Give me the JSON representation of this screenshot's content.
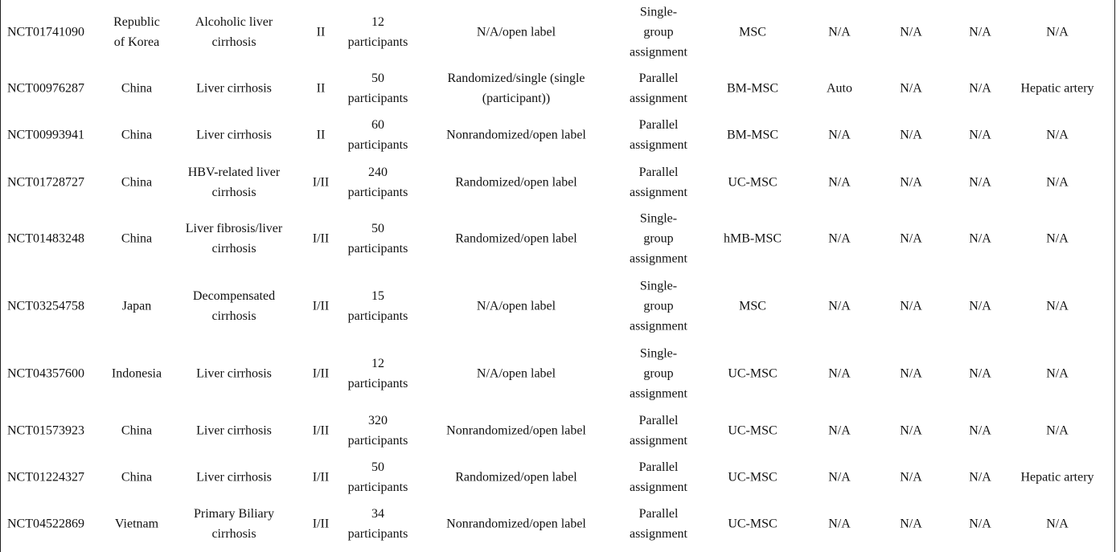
{
  "table": {
    "rows": [
      [
        "NCT01741090",
        "Republic of Korea",
        "Alcoholic liver cirrhosis",
        "II",
        "12 participants",
        "N/A/open label",
        "Single-group assignment",
        "MSC",
        "N/A",
        "N/A",
        "N/A",
        "N/A"
      ],
      [
        "NCT00976287",
        "China",
        "Liver cirrhosis",
        "II",
        "50 participants",
        "Randomized/single (single (participant))",
        "Parallel assignment",
        "BM-MSC",
        "Auto",
        "N/A",
        "N/A",
        "Hepatic artery"
      ],
      [
        "NCT00993941",
        "China",
        "Liver cirrhosis",
        "II",
        "60 participants",
        "Nonrandomized/open label",
        "Parallel assignment",
        "BM-MSC",
        "N/A",
        "N/A",
        "N/A",
        "N/A"
      ],
      [
        "NCT01728727",
        "China",
        "HBV-related liver cirrhosis",
        "I/II",
        "240 participants",
        "Randomized/open label",
        "Parallel assignment",
        "UC-MSC",
        "N/A",
        "N/A",
        "N/A",
        "N/A"
      ],
      [
        "NCT01483248",
        "China",
        "Liver fibrosis/liver cirrhosis",
        "I/II",
        "50 participants",
        "Randomized/open label",
        "Single-group assignment",
        "hMB-MSC",
        "N/A",
        "N/A",
        "N/A",
        "N/A"
      ],
      [
        "NCT03254758",
        "Japan",
        "Decompensated cirrhosis",
        "I/II",
        "15 participants",
        "N/A/open label",
        "Single-group assignment",
        "MSC",
        "N/A",
        "N/A",
        "N/A",
        "N/A"
      ],
      [
        "NCT04357600",
        "Indonesia",
        "Liver cirrhosis",
        "I/II",
        "12 participants",
        "N/A/open label",
        "Single-group assignment",
        "UC-MSC",
        "N/A",
        "N/A",
        "N/A",
        "N/A"
      ],
      [
        "NCT01573923",
        "China",
        "Liver cirrhosis",
        "I/II",
        "320 participants",
        "Nonrandomized/open label",
        "Parallel assignment",
        "UC-MSC",
        "N/A",
        "N/A",
        "N/A",
        "N/A"
      ],
      [
        "NCT01224327",
        "China",
        "Liver cirrhosis",
        "I/II",
        "50 participants",
        "Randomized/open label",
        "Parallel assignment",
        "UC-MSC",
        "N/A",
        "N/A",
        "N/A",
        "Hepatic artery"
      ],
      [
        "NCT04522869",
        "Vietnam",
        "Primary Biliary cirrhosis",
        "I/II",
        "34 participants",
        "Nonrandomized/open label",
        "Parallel assignment",
        "UC-MSC",
        "N/A",
        "N/A",
        "N/A",
        "N/A"
      ]
    ]
  }
}
